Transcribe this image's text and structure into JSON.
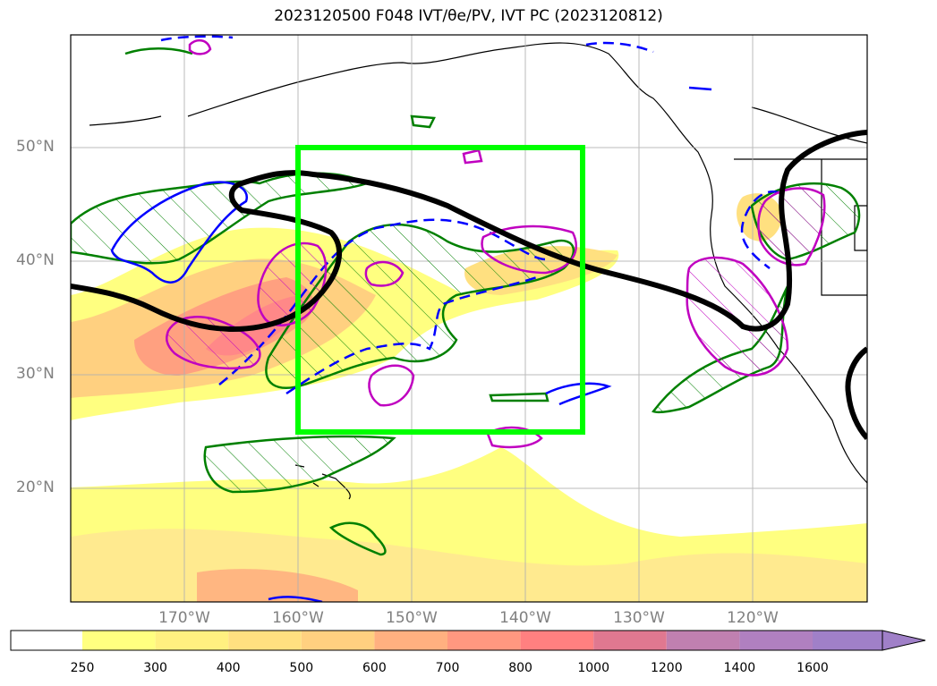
{
  "title": "2023120500 F048 IVT/θe/PV, IVT PC (2023120812)",
  "map": {
    "lat_labels": [
      "50°N",
      "40°N",
      "30°N",
      "20°N"
    ],
    "lon_labels": [
      "170°W",
      "160°W",
      "150°W",
      "140°W",
      "130°W",
      "120°W"
    ],
    "highlight_box_color": "#00ff00",
    "contour_colors": {
      "pv": "#008000",
      "theta_e": "#0000ff",
      "ivt_pc": "#c000c0",
      "ivt_line": "#000000"
    }
  },
  "colorbar": {
    "ticks": [
      "250",
      "300",
      "400",
      "500",
      "600",
      "700",
      "800",
      "1000",
      "1200",
      "1400",
      "1600"
    ],
    "colors": [
      "#ffffff",
      "#ffff80",
      "#fff080",
      "#ffe080",
      "#ffd080",
      "#ffb080",
      "#ff9880",
      "#ff8080",
      "#e07890",
      "#c080b0",
      "#b080c0",
      "#a080c8"
    ]
  }
}
